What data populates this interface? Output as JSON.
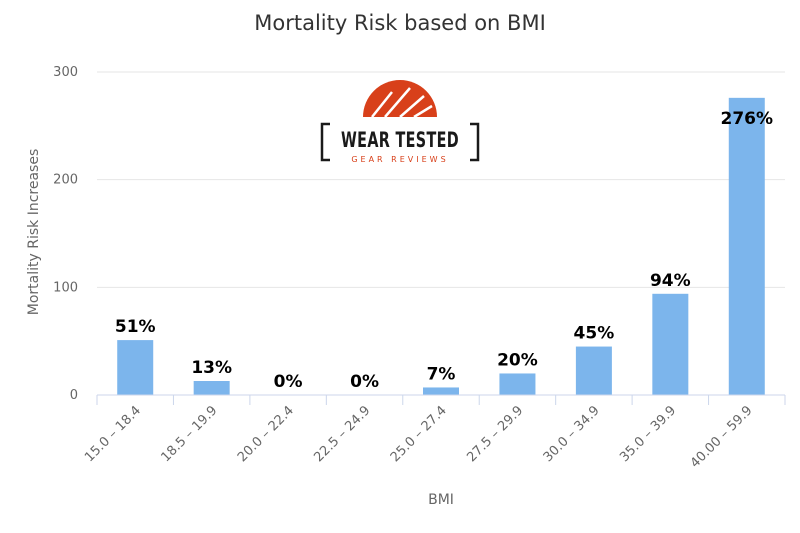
{
  "logo": {
    "line1": "WEAR TESTED",
    "line2": "GEAR REVIEWS"
  },
  "chart_data": {
    "type": "bar",
    "title": "Mortality Risk based on BMI",
    "xlabel": "BMI",
    "ylabel": "Mortality Risk Increases",
    "ylim": [
      0,
      300
    ],
    "yticks": [
      0,
      100,
      200,
      300
    ],
    "categories": [
      "15.0 – 18.4",
      "18.5 – 19.9",
      "20.0 – 22.4",
      "22.5 – 24.9",
      "25.0 – 27.4",
      "27.5 – 29.9",
      "30.0 – 34.9",
      "35.0 – 39.9",
      "40.00 – 59.9"
    ],
    "values": [
      51,
      13,
      0,
      0,
      7,
      20,
      45,
      94,
      276
    ],
    "data_labels": [
      "51%",
      "13%",
      "0%",
      "0%",
      "7%",
      "20%",
      "45%",
      "94%",
      "276%"
    ],
    "grid": true,
    "legend": "none",
    "bar_color": "#7cb5ec"
  }
}
